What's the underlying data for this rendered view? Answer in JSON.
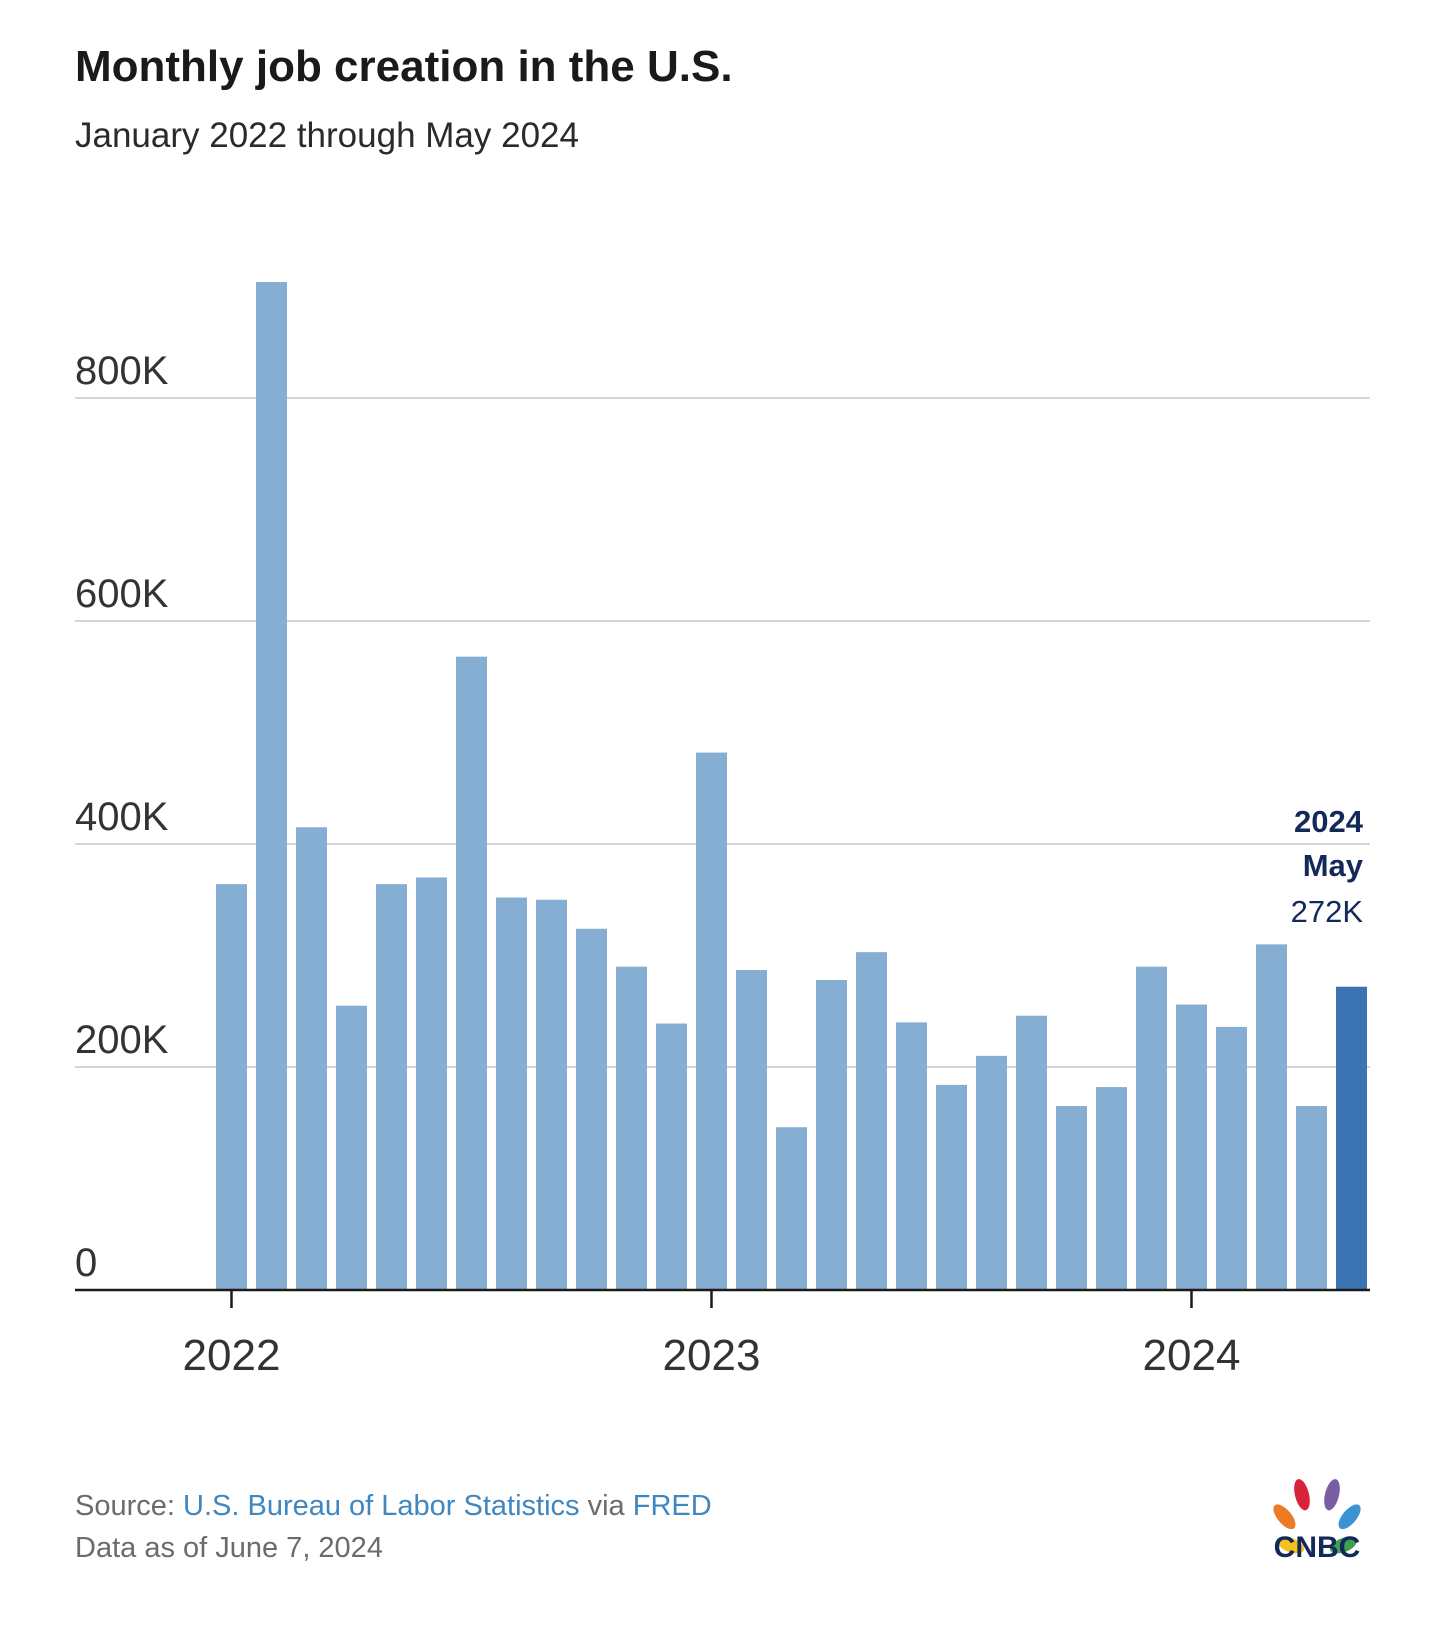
{
  "header": {
    "title": "Monthly job creation in the U.S.",
    "subtitle": "January 2022 through May 2024"
  },
  "footer": {
    "source_label": "Source:",
    "source_org": "U.S. Bureau of Labor Statistics",
    "via_label": "via",
    "source_site": "FRED",
    "data_as_of": "Data as of June 7, 2024"
  },
  "logo": {
    "text": "CNBC"
  },
  "colors": {
    "bar": "#86aed2",
    "highlight_bar": "#3c73b2",
    "grid": "#d7d7d7",
    "axis": "#1a1a1a",
    "annotation": "#12295a",
    "tick_text": "#333333"
  },
  "chart_data": {
    "type": "bar",
    "title": "Monthly job creation in the U.S.",
    "subtitle": "January 2022 through May 2024",
    "xlabel": "",
    "ylabel": "",
    "ylim": [
      0,
      900000
    ],
    "y_ticks": [
      0,
      200000,
      400000,
      600000,
      800000
    ],
    "y_tick_labels": [
      "0",
      "200K",
      "400K",
      "600K",
      "800K"
    ],
    "x_tick_labels": [
      "2022",
      "2023",
      "2024"
    ],
    "x_tick_positions": [
      "Jan 2022",
      "Jan 2023",
      "Jan 2024"
    ],
    "grid": true,
    "categories": [
      "Jan 2022",
      "Feb 2022",
      "Mar 2022",
      "Apr 2022",
      "May 2022",
      "Jun 2022",
      "Jul 2022",
      "Aug 2022",
      "Sep 2022",
      "Oct 2022",
      "Nov 2022",
      "Dec 2022",
      "Jan 2023",
      "Feb 2023",
      "Mar 2023",
      "Apr 2023",
      "May 2023",
      "Jun 2023",
      "Jul 2023",
      "Aug 2023",
      "Sep 2023",
      "Oct 2023",
      "Nov 2023",
      "Dec 2023",
      "Jan 2024",
      "Feb 2024",
      "Mar 2024",
      "Apr 2024",
      "May 2024"
    ],
    "values": [
      364000,
      904000,
      415000,
      255000,
      364000,
      370000,
      568000,
      352000,
      350000,
      324000,
      290000,
      239000,
      482000,
      287000,
      146000,
      278000,
      303000,
      240000,
      184000,
      210000,
      246000,
      165000,
      182000,
      290000,
      256000,
      236000,
      310000,
      165000,
      272000
    ],
    "highlight_index": 28,
    "annotation": {
      "year": "2024",
      "month": "May",
      "value_label": "272K"
    }
  }
}
